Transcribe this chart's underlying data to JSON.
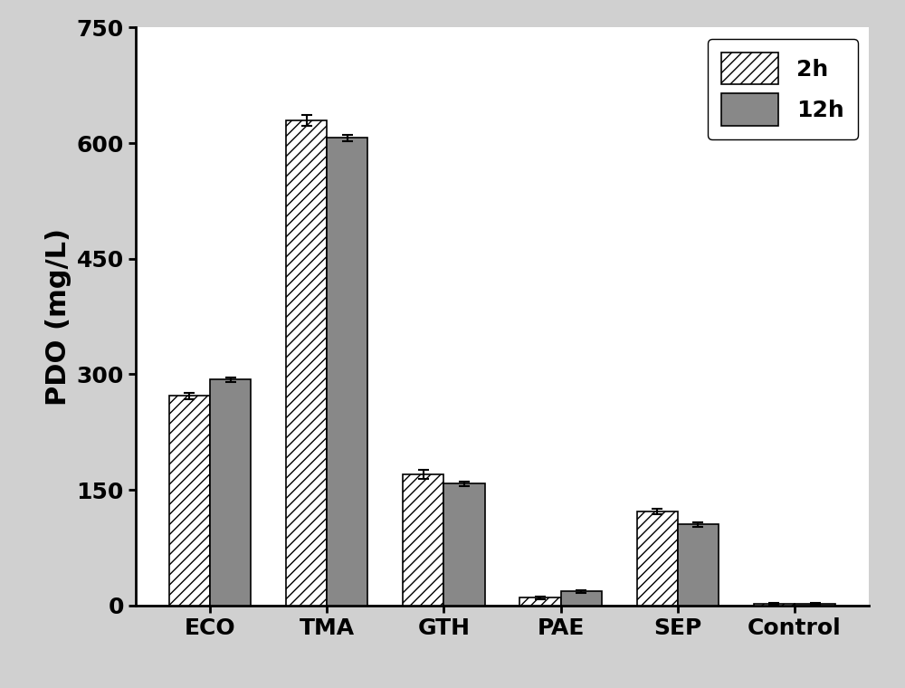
{
  "categories": [
    "ECO",
    "TMA",
    "GTH",
    "PAE",
    "SEP",
    "Control"
  ],
  "values_2h": [
    272,
    630,
    170,
    10,
    122,
    2
  ],
  "values_12h": [
    293,
    607,
    158,
    18,
    105,
    2
  ],
  "err_2h": [
    4,
    7,
    6,
    2,
    3,
    1
  ],
  "err_12h": [
    3,
    4,
    3,
    2,
    3,
    1
  ],
  "bar_width": 0.35,
  "hatch_pattern": "///",
  "bar_color_2h": "#ffffff",
  "bar_color_12h": "#888888",
  "edgecolor": "#000000",
  "ylabel": "PDO (mg/L)",
  "ylim": [
    0,
    750
  ],
  "yticks": [
    0,
    150,
    300,
    450,
    600,
    750
  ],
  "legend_labels": [
    "2h",
    "12h"
  ],
  "legend_loc": "upper right",
  "outer_background": "#d0d0d0",
  "plot_background": "#ffffff",
  "label_fontsize": 22,
  "tick_fontsize": 18,
  "legend_fontsize": 18,
  "spine_linewidth": 2.0,
  "bar_linewidth": 1.2
}
